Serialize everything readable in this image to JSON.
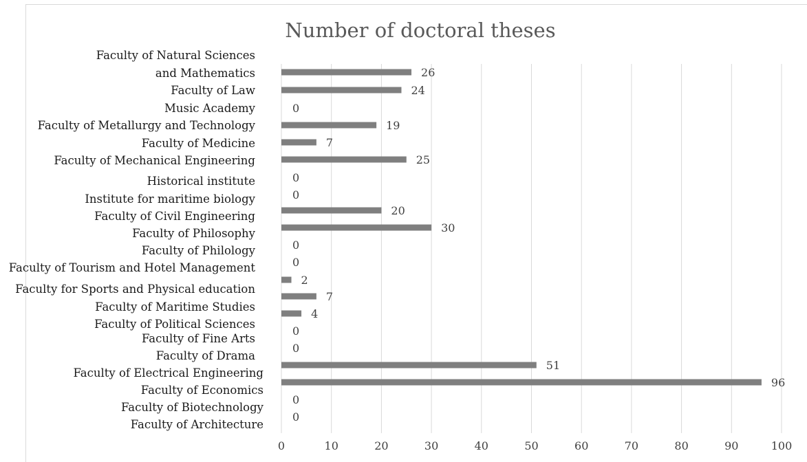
{
  "chart_data": {
    "type": "bar",
    "orientation": "horizontal",
    "title": "Number of doctoral theses",
    "xlim": [
      0,
      100
    ],
    "x_ticks": [
      "0",
      "10",
      "20",
      "30",
      "40",
      "50",
      "60",
      "70",
      "80",
      "90",
      "100"
    ],
    "grid": true,
    "categories": [
      "Faculty of Natural Sciences and Mathematics",
      "Faculty of Law",
      "Music Academy",
      "Faculty of Metallurgy and Technology",
      "Faculty of Medicine",
      "Faculty of Mechanical Engineering",
      "Historical institute",
      "Institute for maritime biology",
      "Faculty of Civil Engineering",
      "Faculty of Philosophy",
      "Faculty of Philology",
      "Faculty of Tourism and Hotel Management",
      "Faculty for Sports and Physical education",
      "Faculty of Maritime Studies",
      "Faculty of Political Sciences",
      "Faculty of Fine Arts",
      "Faculty of Drama",
      "Faculty of Electrical Engineering",
      "Faculty of Economics",
      "Faculty of Biotechnology",
      "Faculty of Architecture"
    ],
    "values": [
      26,
      24,
      0,
      19,
      7,
      25,
      0,
      0,
      20,
      30,
      0,
      0,
      2,
      7,
      4,
      0,
      0,
      51,
      96,
      0,
      0
    ],
    "bar_color": "#7f7f7f",
    "grid_color": "#d9d9d9"
  }
}
